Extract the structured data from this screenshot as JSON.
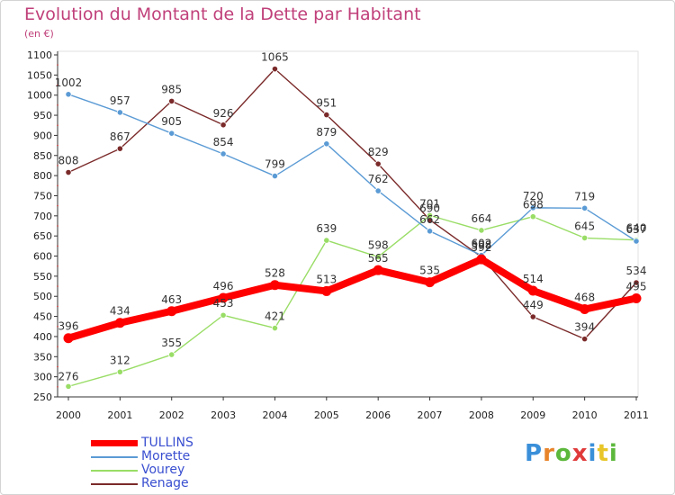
{
  "header": {
    "title": "Evolution du Montant de la Dette par Habitant",
    "subtitle": "(en €)"
  },
  "logo": {
    "text": "Proxiti",
    "colors": [
      "#3a8fd9",
      "#e8842a",
      "#5cb83c",
      "#e03a3a",
      "#3a8fd9",
      "#e8c62a",
      "#5cb83c"
    ]
  },
  "chart_data": {
    "type": "line",
    "title": "Evolution du Montant de la Dette par Habitant",
    "ylabel": "(en €)",
    "xlabel": "",
    "x": [
      "2000",
      "2001",
      "2002",
      "2003",
      "2004",
      "2005",
      "2006",
      "2007",
      "2008",
      "2009",
      "2010",
      "2011"
    ],
    "ylim": [
      250,
      1100
    ],
    "yticks": [
      250,
      300,
      350,
      400,
      450,
      500,
      550,
      600,
      650,
      700,
      750,
      800,
      850,
      900,
      950,
      1000,
      1050,
      1100
    ],
    "grid": false,
    "legend": "bottom-left",
    "series": [
      {
        "name": "TULLINS",
        "color": "#ff0000",
        "values": [
          396,
          434,
          463,
          496,
          528,
          513,
          565,
          535,
          592,
          514,
          468,
          495
        ],
        "value_labels": [
          "396",
          "434",
          "463",
          "496",
          "528",
          "513",
          "565",
          "535",
          "592",
          "514",
          "468",
          "495"
        ]
      },
      {
        "name": "Morette",
        "color": "#5b9bd5",
        "values": [
          1002,
          957,
          905,
          854,
          799,
          879,
          762,
          662,
          602,
          720,
          719,
          637
        ],
        "value_labels": [
          "1002",
          "957",
          "905",
          "854",
          "799",
          "879",
          "762",
          "662",
          "602",
          "720",
          "719",
          "637"
        ]
      },
      {
        "name": "Vourey",
        "color": "#99dd66",
        "values": [
          276,
          312,
          355,
          453,
          421,
          639,
          598,
          701,
          664,
          698,
          645,
          640
        ],
        "value_labels": [
          "276",
          "312",
          "355",
          "453",
          "421",
          "639",
          "598",
          "701",
          "664",
          "698",
          "645",
          "640"
        ]
      },
      {
        "name": "Renage",
        "color": "#7b2a2a",
        "values": [
          808,
          867,
          985,
          926,
          1065,
          951,
          829,
          690,
          598,
          449,
          394,
          534
        ],
        "value_labels": [
          "808",
          "867",
          "985",
          "926",
          "1065",
          "951",
          "829",
          "690",
          "598",
          "449",
          "394",
          "534"
        ]
      }
    ]
  }
}
